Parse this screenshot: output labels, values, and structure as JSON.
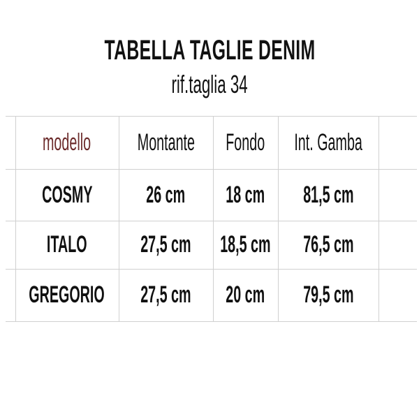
{
  "title": "TABELLA TAGLIE DENIM",
  "subtitle": "rif.taglia 34",
  "colors": {
    "header_model": "#6b2a2a",
    "text": "#111111",
    "grid": "#d0d0d0"
  },
  "table": {
    "headers": [
      "modello",
      "Montante",
      "Fondo",
      "Int. Gamba"
    ],
    "rows": [
      [
        "COSMY",
        "26 cm",
        "18 cm",
        "81,5 cm"
      ],
      [
        "ITALO",
        "27,5 cm",
        "18,5 cm",
        "76,5 cm"
      ],
      [
        "GREGORIO",
        "27,5 cm",
        "20 cm",
        "79,5 cm"
      ]
    ]
  }
}
